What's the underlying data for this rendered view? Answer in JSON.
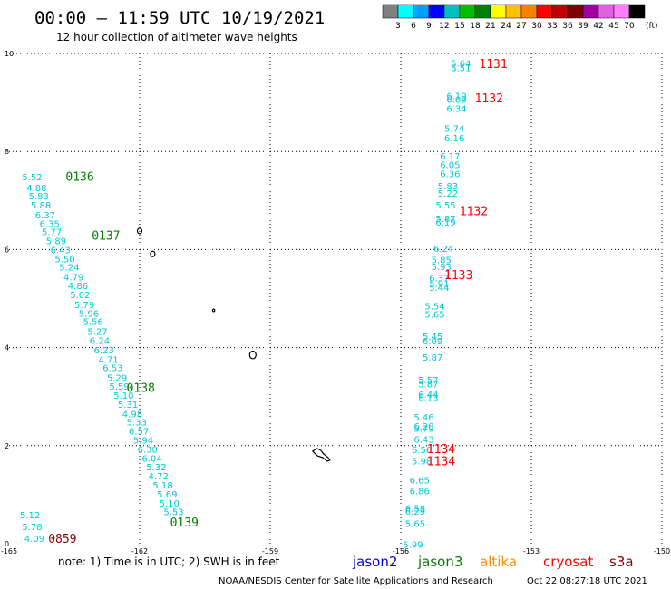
{
  "header": {
    "title": "00:00 – 11:59 UTC 10/19/2021",
    "subtitle": "12 hour collection of altimeter wave heights"
  },
  "colorbar": {
    "colors": [
      "#808080",
      "#00ffff",
      "#00a0ff",
      "#0000ff",
      "#00c0c0",
      "#00c000",
      "#008000",
      "#ffff00",
      "#ffc000",
      "#ff8000",
      "#ff0000",
      "#c00000",
      "#800000",
      "#a000a0",
      "#e060e0",
      "#ff80ff",
      "#000000"
    ],
    "labels": [
      "3",
      "6",
      "9",
      "12",
      "15",
      "18",
      "21",
      "24",
      "27",
      "30",
      "33",
      "36",
      "39",
      "42",
      "45",
      "70"
    ],
    "unit": "(ft)"
  },
  "footer": {
    "note": "note:  1) Time is in UTC;  2) SWH is in feet",
    "credit": "NOAA/NESDIS Center for Satellite Applications and Research",
    "timestamp": "Oct 22 08:27:18 UTC 2021",
    "legend": [
      {
        "name": "jason2",
        "color": "#0000cc"
      },
      {
        "name": "jason3",
        "color": "#008000"
      },
      {
        "name": "altika",
        "color": "#ff8c00"
      },
      {
        "name": "cryosat",
        "color": "#ff0000"
      },
      {
        "name": "s3a",
        "color": "#8b0000"
      }
    ]
  },
  "chart_data": {
    "type": "scatter",
    "title": "00:00 – 11:59 UTC 10/19/2021",
    "subtitle": "12 hour collection of altimeter wave heights",
    "xlim": [
      -165,
      -150
    ],
    "ylim": [
      0,
      10
    ],
    "x_ticks": [
      "-165",
      "-162",
      "-159",
      "-156",
      "-153",
      "-150"
    ],
    "y_ticks": [
      "0",
      "2",
      "4",
      "6",
      "8",
      "10"
    ],
    "grid": true,
    "value_color": "#00c8d8",
    "series": [
      {
        "name": "jason3",
        "pass_labels": [
          {
            "label": "0136",
            "x": -163.7,
            "y": 7.4,
            "color": "#008000"
          },
          {
            "label": "0137",
            "x": -163.1,
            "y": 6.2,
            "color": "#008000"
          },
          {
            "label": "0138",
            "x": -162.3,
            "y": 3.1,
            "color": "#008000"
          },
          {
            "label": "0139",
            "x": -161.3,
            "y": 0.35,
            "color": "#008000"
          }
        ],
        "points": [
          {
            "x": -164.7,
            "y": 7.41,
            "v": "5.52"
          },
          {
            "x": -164.6,
            "y": 7.19,
            "v": "4.88"
          },
          {
            "x": -164.55,
            "y": 7.02,
            "v": "5.83"
          },
          {
            "x": -164.5,
            "y": 6.84,
            "v": "5.88"
          },
          {
            "x": -164.4,
            "y": 6.64,
            "v": "6.37"
          },
          {
            "x": -164.3,
            "y": 6.46,
            "v": "6.35"
          },
          {
            "x": -164.25,
            "y": 6.29,
            "v": "5.77"
          },
          {
            "x": -164.15,
            "y": 6.11,
            "v": "5.89"
          },
          {
            "x": -164.05,
            "y": 5.92,
            "v": "6.43"
          },
          {
            "x": -163.95,
            "y": 5.74,
            "v": "5.50"
          },
          {
            "x": -163.85,
            "y": 5.57,
            "v": "5.24"
          },
          {
            "x": -163.75,
            "y": 5.37,
            "v": "4.79"
          },
          {
            "x": -163.65,
            "y": 5.19,
            "v": "4.86"
          },
          {
            "x": -163.6,
            "y": 5.01,
            "v": "5.02"
          },
          {
            "x": -163.5,
            "y": 4.81,
            "v": "5.79"
          },
          {
            "x": -163.4,
            "y": 4.63,
            "v": "5.96"
          },
          {
            "x": -163.3,
            "y": 4.46,
            "v": "5.56"
          },
          {
            "x": -163.2,
            "y": 4.26,
            "v": "5.27"
          },
          {
            "x": -163.15,
            "y": 4.08,
            "v": "6.24"
          },
          {
            "x": -163.05,
            "y": 3.88,
            "v": "6.23"
          },
          {
            "x": -162.95,
            "y": 3.69,
            "v": "4.71"
          },
          {
            "x": -162.85,
            "y": 3.52,
            "v": "6.53"
          },
          {
            "x": -162.75,
            "y": 3.32,
            "v": "5.29"
          },
          {
            "x": -162.7,
            "y": 3.14,
            "v": "5.59"
          },
          {
            "x": -162.6,
            "y": 2.96,
            "v": "5.10"
          },
          {
            "x": -162.5,
            "y": 2.77,
            "v": "5.31"
          },
          {
            "x": -162.4,
            "y": 2.58,
            "v": "4.98"
          },
          {
            "x": -162.3,
            "y": 2.41,
            "v": "5.33"
          },
          {
            "x": -162.25,
            "y": 2.23,
            "v": "6.57"
          },
          {
            "x": -162.15,
            "y": 2.04,
            "v": "5.94"
          },
          {
            "x": -162.05,
            "y": 1.86,
            "v": "6.30"
          },
          {
            "x": -161.95,
            "y": 1.67,
            "v": "6.04"
          },
          {
            "x": -161.85,
            "y": 1.5,
            "v": "5.32"
          },
          {
            "x": -161.8,
            "y": 1.31,
            "v": "4.72"
          },
          {
            "x": -161.7,
            "y": 1.13,
            "v": "5.18"
          },
          {
            "x": -161.6,
            "y": 0.94,
            "v": "5.69"
          },
          {
            "x": -161.55,
            "y": 0.76,
            "v": "5.10"
          },
          {
            "x": -161.45,
            "y": 0.58,
            "v": "5.53"
          }
        ]
      },
      {
        "name": "s3a",
        "pass_labels": [
          {
            "label": "0859",
            "x": -164.1,
            "y": 0.02,
            "color": "#8b0000"
          }
        ],
        "points": [
          {
            "x": -164.75,
            "y": 0.52,
            "v": "5.12"
          },
          {
            "x": -164.7,
            "y": 0.28,
            "v": "5.78"
          },
          {
            "x": -164.65,
            "y": 0.04,
            "v": "4.09"
          }
        ]
      },
      {
        "name": "cryosat",
        "pass_labels": [
          {
            "label": "1131",
            "x": -154.2,
            "y": 9.7,
            "color": "#ff0000"
          },
          {
            "label": "1132",
            "x": -154.3,
            "y": 9.0,
            "color": "#ff0000"
          },
          {
            "label": "1132",
            "x": -154.65,
            "y": 6.7,
            "color": "#ff0000"
          },
          {
            "label": "1133",
            "x": -155.0,
            "y": 5.4,
            "color": "#ff0000"
          },
          {
            "label": "1134",
            "x": -155.4,
            "y": 1.85,
            "color": "#ff0000"
          },
          {
            "label": "1134",
            "x": -155.4,
            "y": 1.6,
            "color": "#ff0000"
          }
        ],
        "points": [
          {
            "x": -154.85,
            "y": 9.73,
            "v": "5.64"
          },
          {
            "x": -154.85,
            "y": 9.64,
            "v": "5.51"
          },
          {
            "x": -154.95,
            "y": 9.07,
            "v": "6.19"
          },
          {
            "x": -154.95,
            "y": 8.99,
            "v": "6.09"
          },
          {
            "x": -154.95,
            "y": 8.81,
            "v": "6.34"
          },
          {
            "x": -155.0,
            "y": 8.4,
            "v": "5.74"
          },
          {
            "x": -155.0,
            "y": 8.21,
            "v": "6.16"
          },
          {
            "x": -155.1,
            "y": 7.84,
            "v": "6.17"
          },
          {
            "x": -155.1,
            "y": 7.66,
            "v": "6.05"
          },
          {
            "x": -155.1,
            "y": 7.48,
            "v": "6.36"
          },
          {
            "x": -155.15,
            "y": 7.23,
            "v": "5.83"
          },
          {
            "x": -155.15,
            "y": 7.08,
            "v": "5.22"
          },
          {
            "x": -155.2,
            "y": 6.84,
            "v": "5.55"
          },
          {
            "x": -155.2,
            "y": 6.56,
            "v": "5.87"
          },
          {
            "x": -155.2,
            "y": 6.49,
            "v": "6.19"
          },
          {
            "x": -155.25,
            "y": 5.95,
            "v": "6.24"
          },
          {
            "x": -155.3,
            "y": 5.72,
            "v": "5.85"
          },
          {
            "x": -155.3,
            "y": 5.58,
            "v": "5.93"
          },
          {
            "x": -155.35,
            "y": 5.35,
            "v": "6.37"
          },
          {
            "x": -155.35,
            "y": 5.24,
            "v": "5.91"
          },
          {
            "x": -155.35,
            "y": 5.16,
            "v": "5.44"
          },
          {
            "x": -155.45,
            "y": 4.78,
            "v": "5.54"
          },
          {
            "x": -155.45,
            "y": 4.61,
            "v": "5.65"
          },
          {
            "x": -155.5,
            "y": 4.16,
            "v": "5.45"
          },
          {
            "x": -155.5,
            "y": 4.07,
            "v": "6.09"
          },
          {
            "x": -155.5,
            "y": 3.73,
            "v": "5.87"
          },
          {
            "x": -155.6,
            "y": 3.27,
            "v": "5.57"
          },
          {
            "x": -155.6,
            "y": 3.19,
            "v": "5.87"
          },
          {
            "x": -155.6,
            "y": 2.98,
            "v": "6.44"
          },
          {
            "x": -155.6,
            "y": 2.91,
            "v": "6.13"
          },
          {
            "x": -155.7,
            "y": 2.51,
            "v": "5.46"
          },
          {
            "x": -155.7,
            "y": 2.33,
            "v": "6.20"
          },
          {
            "x": -155.7,
            "y": 2.28,
            "v": "5.79"
          },
          {
            "x": -155.7,
            "y": 2.06,
            "v": "6.43"
          },
          {
            "x": -155.75,
            "y": 1.85,
            "v": "6.56"
          },
          {
            "x": -155.75,
            "y": 1.62,
            "v": "5.98"
          },
          {
            "x": -155.8,
            "y": 1.23,
            "v": "6.65"
          },
          {
            "x": -155.8,
            "y": 1.01,
            "v": "6.86"
          },
          {
            "x": -155.9,
            "y": 0.66,
            "v": "6.58"
          },
          {
            "x": -155.9,
            "y": 0.59,
            "v": "6.29"
          },
          {
            "x": -155.9,
            "y": 0.34,
            "v": "5.65"
          },
          {
            "x": -155.95,
            "y": -0.08,
            "v": "5.99"
          }
        ]
      }
    ],
    "islands": [
      {
        "x": -162.0,
        "y": 6.38
      },
      {
        "x": -161.7,
        "y": 5.91
      },
      {
        "x": -160.3,
        "y": 4.76
      },
      {
        "x": -159.4,
        "y": 3.85
      },
      {
        "x": -157.9,
        "y": 1.85
      }
    ]
  }
}
